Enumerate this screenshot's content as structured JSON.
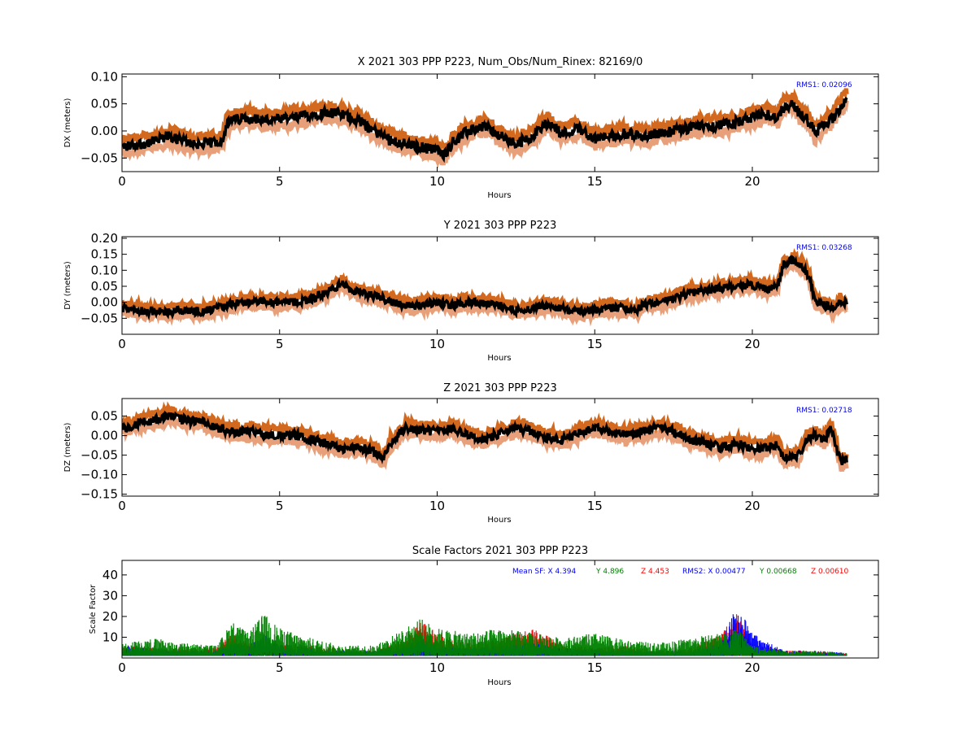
{
  "chart_data": [
    {
      "type": "line",
      "title": "X 2021 303 PPP  P223, Num_Obs/Num_Rinex: 82169/0",
      "xlabel": "Hours",
      "ylabel": "DX (meters)",
      "xlim": [
        0,
        24
      ],
      "ylim": [
        -0.075,
        0.105
      ],
      "xticks": [
        0,
        5,
        10,
        15,
        20
      ],
      "xtick_labels": [
        "0",
        "5",
        "10",
        "15",
        "20"
      ],
      "yticks": [
        -0.05,
        0.0,
        0.05,
        0.1
      ],
      "ytick_labels": [
        "−0.05",
        "0.00",
        "0.05",
        "0.10"
      ],
      "annotation": {
        "text": "RMS1:  0.02096",
        "color": "#0000ff"
      },
      "band_offset": 0.022,
      "series": [
        {
          "color": "#000000",
          "x": [
            0,
            0.5,
            1,
            1.5,
            2,
            2.5,
            3,
            3.2,
            3.3,
            3.5,
            4,
            4.5,
            5,
            5.5,
            6,
            6.5,
            7,
            7.5,
            8,
            8.5,
            9,
            9.5,
            10,
            10.2,
            10.5,
            11,
            11.5,
            12,
            12.5,
            13,
            13.5,
            14,
            14.5,
            15,
            15.5,
            16,
            16.5,
            17,
            17.5,
            18,
            18.5,
            19,
            19.5,
            20,
            20.5,
            20.8,
            21,
            21.3,
            21.5,
            21.7,
            22,
            22.3,
            22.5,
            22.8,
            23
          ],
          "y": [
            -0.03,
            -0.025,
            -0.02,
            -0.01,
            -0.02,
            -0.025,
            -0.02,
            -0.015,
            0.01,
            0.02,
            0.025,
            0.02,
            0.02,
            0.025,
            0.03,
            0.035,
            0.03,
            0.02,
            0.0,
            -0.015,
            -0.025,
            -0.03,
            -0.035,
            -0.045,
            -0.02,
            0.0,
            0.01,
            -0.01,
            -0.025,
            -0.01,
            0.015,
            -0.005,
            0.005,
            -0.015,
            -0.01,
            -0.005,
            -0.01,
            -0.005,
            0.0,
            0.005,
            0.01,
            0.01,
            0.015,
            0.025,
            0.03,
            0.025,
            0.045,
            0.05,
            0.03,
            0.025,
            -0.005,
            0.015,
            0.02,
            0.045,
            0.06
          ]
        }
      ]
    },
    {
      "type": "line",
      "title": "Y 2021 303 PPP  P223",
      "xlabel": "Hours",
      "ylabel": "DY (meters)",
      "xlim": [
        0,
        24
      ],
      "ylim": [
        -0.1,
        0.205
      ],
      "xticks": [
        0,
        5,
        10,
        15,
        20
      ],
      "xtick_labels": [
        "0",
        "5",
        "10",
        "15",
        "20"
      ],
      "yticks": [
        -0.05,
        0.0,
        0.05,
        0.1,
        0.15,
        0.2
      ],
      "ytick_labels": [
        "−0.05",
        "0.00",
        "0.05",
        "0.10",
        "0.15",
        "0.20"
      ],
      "annotation": {
        "text": "RMS1:  0.03268",
        "color": "#0000ff"
      },
      "band_offset": 0.028,
      "series": [
        {
          "color": "#000000",
          "x": [
            0,
            0.5,
            1,
            1.5,
            2,
            2.5,
            3,
            3.5,
            4,
            4.5,
            5,
            5.5,
            6,
            6.5,
            7,
            7.2,
            7.5,
            8,
            8.5,
            9,
            9.5,
            10,
            10.5,
            11,
            11.5,
            12,
            12.5,
            13,
            13.5,
            14,
            14.5,
            15,
            15.5,
            16,
            16.3,
            16.5,
            17,
            17.5,
            18,
            18.5,
            19,
            19.5,
            20,
            20.5,
            20.8,
            21,
            21.3,
            21.6,
            21.8,
            22,
            22.3,
            22.6,
            22.8,
            23
          ],
          "y": [
            -0.02,
            -0.025,
            -0.03,
            -0.03,
            -0.025,
            -0.03,
            -0.02,
            -0.005,
            0.0,
            0.0,
            0.0,
            0.0,
            0.01,
            0.03,
            0.06,
            0.04,
            0.03,
            0.02,
            0.005,
            -0.01,
            -0.01,
            0.0,
            -0.01,
            0.0,
            -0.005,
            -0.01,
            -0.025,
            -0.02,
            -0.01,
            -0.02,
            -0.03,
            -0.025,
            -0.015,
            -0.02,
            -0.03,
            -0.01,
            0.0,
            0.01,
            0.03,
            0.035,
            0.045,
            0.05,
            0.055,
            0.04,
            0.05,
            0.12,
            0.13,
            0.11,
            0.08,
            0.0,
            -0.01,
            -0.02,
            0.0,
            0.0
          ]
        }
      ]
    },
    {
      "type": "line",
      "title": "Z 2021 303 PPP  P223",
      "xlabel": "Hours",
      "ylabel": "DZ (meters)",
      "xlim": [
        0,
        24
      ],
      "ylim": [
        -0.155,
        0.095
      ],
      "xticks": [
        0,
        5,
        10,
        15,
        20
      ],
      "xtick_labels": [
        "0",
        "5",
        "10",
        "15",
        "20"
      ],
      "yticks": [
        -0.15,
        -0.1,
        -0.05,
        0.0,
        0.05
      ],
      "ytick_labels": [
        "−0.15",
        "−0.10",
        "−0.05",
        "0.00",
        "0.05"
      ],
      "annotation": {
        "text": "RMS1:  0.02718",
        "color": "#0000ff"
      },
      "band_offset": 0.026,
      "series": [
        {
          "color": "#000000",
          "x": [
            0,
            0.5,
            1,
            1.5,
            2,
            2.5,
            3,
            3.5,
            4,
            4.5,
            5,
            5.5,
            6,
            6.5,
            7,
            7.5,
            8,
            8.3,
            8.5,
            9,
            9.5,
            10,
            10.5,
            11,
            11.5,
            12,
            12.5,
            13,
            13.5,
            14,
            14.5,
            15,
            15.5,
            16,
            16.5,
            17,
            17.5,
            18,
            18.5,
            19,
            19.5,
            20,
            20.5,
            20.8,
            21,
            21.5,
            21.7,
            22,
            22.3,
            22.5,
            22.8,
            23
          ],
          "y": [
            0.02,
            0.03,
            0.04,
            0.05,
            0.04,
            0.035,
            0.02,
            0.01,
            0.01,
            0.005,
            0.0,
            0.0,
            -0.01,
            -0.02,
            -0.035,
            -0.03,
            -0.04,
            -0.06,
            -0.02,
            0.02,
            0.015,
            0.01,
            0.02,
            0.0,
            -0.01,
            0.005,
            0.02,
            0.01,
            -0.005,
            -0.01,
            0.005,
            0.02,
            0.01,
            0.0,
            0.01,
            0.02,
            0.01,
            -0.01,
            -0.02,
            -0.03,
            -0.02,
            -0.035,
            -0.03,
            -0.025,
            -0.06,
            -0.05,
            -0.01,
            0.0,
            -0.01,
            0.02,
            -0.07,
            -0.06
          ]
        }
      ]
    },
    {
      "type": "scatter",
      "title": "Scale Factors 2021 303 PPP  P223",
      "xlabel": "Hours",
      "ylabel": "Scale Factor",
      "xlim": [
        0,
        24
      ],
      "ylim": [
        0,
        47
      ],
      "xticks": [
        0,
        5,
        10,
        15,
        20
      ],
      "xtick_labels": [
        "0",
        "5",
        "10",
        "15",
        "20"
      ],
      "yticks": [
        10,
        20,
        30,
        40
      ],
      "ytick_labels": [
        "10",
        "20",
        "30",
        "40"
      ],
      "annotations": [
        {
          "text": "Mean SF: X   4.394",
          "color": "#0000ff"
        },
        {
          "text": "Y   4.896",
          "color": "#008000"
        },
        {
          "text": "Z   4.453",
          "color": "#ff0000"
        },
        {
          "text": "RMS2: X  0.00477",
          "color": "#0000ff"
        },
        {
          "text": "Y  0.00668",
          "color": "#008000"
        },
        {
          "text": "Z  0.00610",
          "color": "#ff0000"
        }
      ],
      "series": [
        {
          "color": "#ff0000",
          "x": [
            0,
            1,
            2,
            3,
            3.5,
            4,
            4.5,
            5,
            6,
            7,
            8,
            9,
            9.5,
            10,
            11,
            12,
            13,
            14,
            15,
            16,
            17,
            18,
            19,
            19.5,
            20,
            21,
            22,
            23
          ],
          "y": [
            5,
            4,
            4,
            4,
            10,
            6,
            8,
            6,
            5,
            4,
            3,
            8,
            15,
            10,
            6,
            8,
            12,
            6,
            4,
            5,
            3,
            4,
            10,
            18,
            6,
            3,
            3,
            2
          ]
        },
        {
          "color": "#0000ff",
          "x": [
            0,
            1,
            2,
            3,
            3.5,
            4,
            4.5,
            5,
            6,
            7,
            8,
            9,
            9.5,
            10,
            11,
            12,
            13,
            14,
            15,
            16,
            17,
            18,
            19,
            19.5,
            20,
            21,
            22,
            23
          ],
          "y": [
            5,
            4,
            3,
            3,
            6,
            5,
            10,
            6,
            4,
            3,
            3,
            5,
            8,
            5,
            4,
            5,
            6,
            4,
            4,
            3,
            3,
            3,
            6,
            22,
            10,
            3,
            3,
            2
          ]
        },
        {
          "color": "#008000",
          "x": [
            0,
            1,
            2,
            3,
            3.5,
            4,
            4.5,
            5,
            6,
            7,
            8,
            9,
            9.5,
            10,
            11,
            12,
            13,
            14,
            15,
            16,
            17,
            18,
            19,
            19.5,
            20,
            21,
            22,
            23
          ],
          "y": [
            6,
            8,
            6,
            5,
            15,
            10,
            18,
            12,
            8,
            5,
            5,
            12,
            16,
            12,
            10,
            12,
            10,
            8,
            10,
            7,
            6,
            8,
            10,
            12,
            5,
            3,
            3,
            2
          ]
        }
      ]
    }
  ],
  "colors": {
    "band_upper": "#d2691e",
    "band_lower": "#e8a07a",
    "center": "#000000"
  }
}
